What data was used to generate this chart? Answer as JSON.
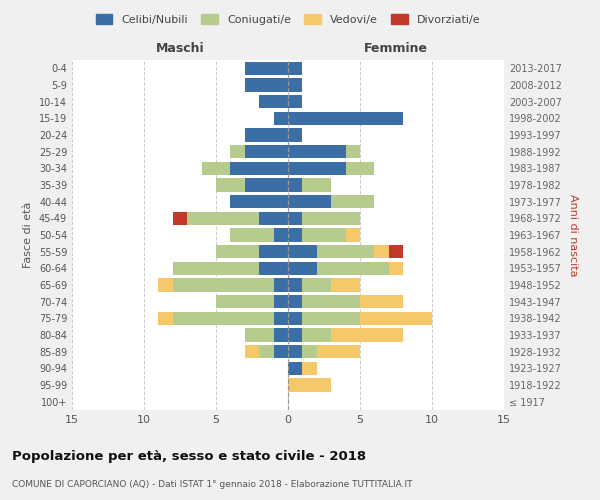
{
  "age_groups": [
    "100+",
    "95-99",
    "90-94",
    "85-89",
    "80-84",
    "75-79",
    "70-74",
    "65-69",
    "60-64",
    "55-59",
    "50-54",
    "45-49",
    "40-44",
    "35-39",
    "30-34",
    "25-29",
    "20-24",
    "15-19",
    "10-14",
    "5-9",
    "0-4"
  ],
  "birth_years": [
    "≤ 1917",
    "1918-1922",
    "1923-1927",
    "1928-1932",
    "1933-1937",
    "1938-1942",
    "1943-1947",
    "1948-1952",
    "1953-1957",
    "1958-1962",
    "1963-1967",
    "1968-1972",
    "1973-1977",
    "1978-1982",
    "1983-1987",
    "1988-1992",
    "1993-1997",
    "1998-2002",
    "2003-2007",
    "2008-2012",
    "2013-2017"
  ],
  "maschi": {
    "celibi": [
      0,
      0,
      0,
      1,
      1,
      1,
      1,
      1,
      2,
      2,
      1,
      2,
      4,
      3,
      4,
      3,
      3,
      1,
      2,
      3,
      3
    ],
    "coniugati": [
      0,
      0,
      0,
      1,
      2,
      7,
      4,
      7,
      6,
      3,
      3,
      5,
      0,
      2,
      2,
      1,
      0,
      0,
      0,
      0,
      0
    ],
    "vedovi": [
      0,
      0,
      0,
      1,
      0,
      1,
      0,
      1,
      0,
      0,
      0,
      0,
      0,
      0,
      0,
      0,
      0,
      0,
      0,
      0,
      0
    ],
    "divorziati": [
      0,
      0,
      0,
      0,
      0,
      0,
      0,
      0,
      0,
      0,
      0,
      1,
      0,
      0,
      0,
      0,
      0,
      0,
      0,
      0,
      0
    ]
  },
  "femmine": {
    "nubili": [
      0,
      0,
      1,
      1,
      1,
      1,
      1,
      1,
      2,
      2,
      1,
      1,
      3,
      1,
      4,
      4,
      1,
      8,
      1,
      1,
      1
    ],
    "coniugate": [
      0,
      0,
      0,
      1,
      2,
      4,
      4,
      2,
      5,
      4,
      3,
      4,
      3,
      2,
      2,
      1,
      0,
      0,
      0,
      0,
      0
    ],
    "vedove": [
      0,
      3,
      1,
      3,
      5,
      5,
      3,
      2,
      1,
      1,
      1,
      0,
      0,
      0,
      0,
      0,
      0,
      0,
      0,
      0,
      0
    ],
    "divorziate": [
      0,
      0,
      0,
      0,
      0,
      0,
      0,
      0,
      0,
      1,
      0,
      0,
      0,
      0,
      0,
      0,
      0,
      0,
      0,
      0,
      0
    ]
  },
  "colors": {
    "celibi_nubili": "#3a6ea5",
    "coniugati": "#b5cc8e",
    "vedovi": "#f5c96a",
    "divorziati": "#c0392b"
  },
  "xlim": 15,
  "title": "Popolazione per età, sesso e stato civile - 2018",
  "subtitle": "COMUNE DI CAPORCIANO (AQ) - Dati ISTAT 1° gennaio 2018 - Elaborazione TUTTITALIA.IT",
  "xlabel_left": "Maschi",
  "xlabel_right": "Femmine",
  "ylabel_left": "Fasce di età",
  "ylabel_right": "Anni di nascita",
  "legend_labels": [
    "Celibi/Nubili",
    "Coniugati/e",
    "Vedovi/e",
    "Divorziati/e"
  ],
  "bg_color": "#f0f0f0",
  "plot_bg_color": "#ffffff"
}
